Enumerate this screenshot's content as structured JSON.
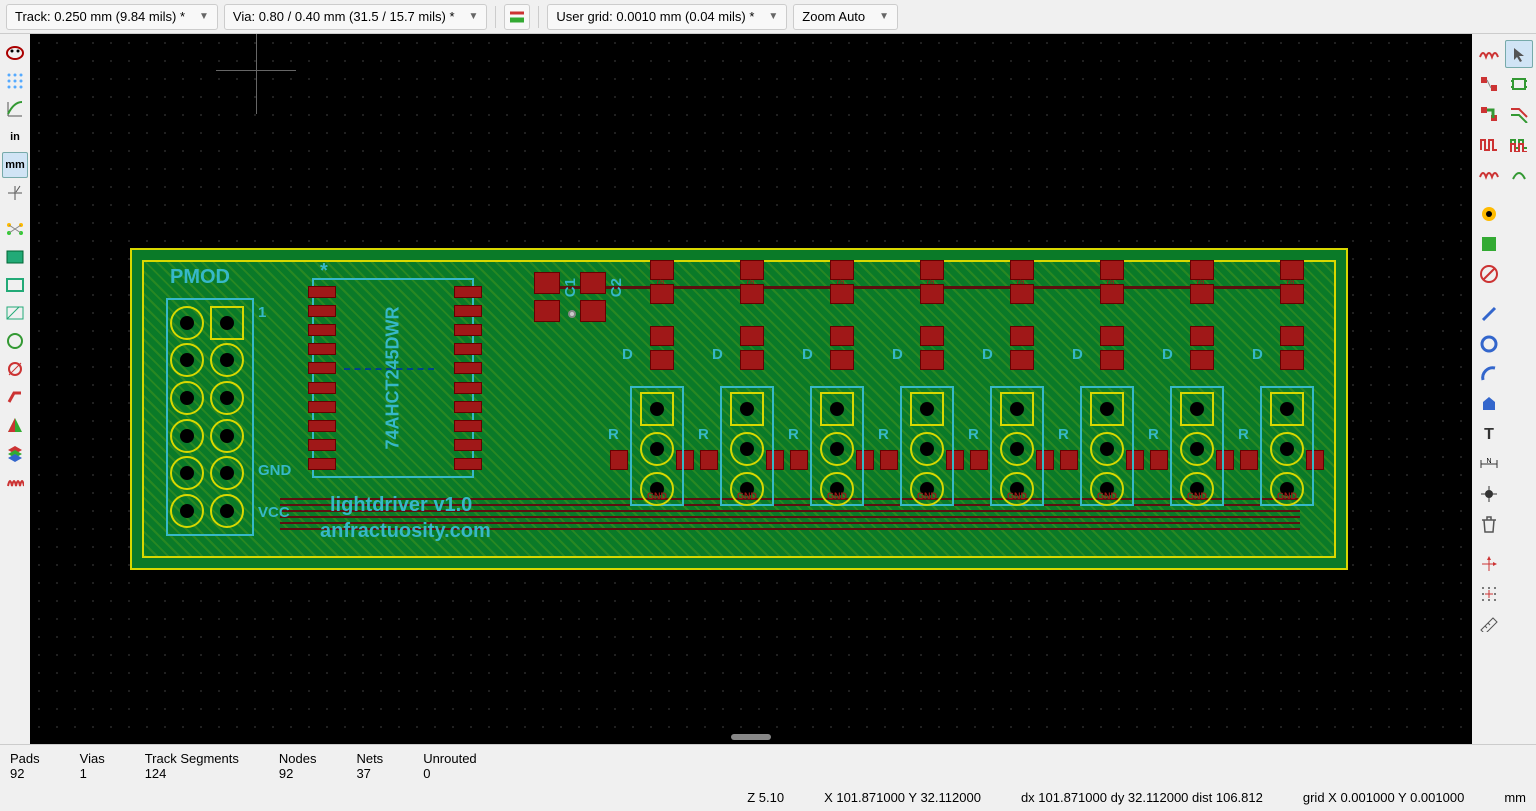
{
  "toolbar": {
    "track": "Track: 0.250 mm (9.84 mils) *",
    "via": "Via: 0.80 / 0.40 mm (31.5 / 15.7 mils) *",
    "grid": "User grid: 0.0010 mm (0.04 mils) *",
    "zoom": "Zoom Auto"
  },
  "left": {
    "units_in": "in",
    "units_mm": "mm"
  },
  "board": {
    "background_color": "#0a7a28",
    "outline_color": "#d8d800",
    "silk_color": "#36b8c8",
    "copper_color": "#a01818",
    "pmod_label": "PMOD",
    "pmod_pin1": "1",
    "pmod_gnd": "GND",
    "pmod_vcc": "VCC",
    "ic_star": "*",
    "ic_name": "74AHCT245DWR",
    "footer1": "lightdriver v1.0",
    "footer2": "anfractuosity.com",
    "cap1": "C1",
    "cap2": "C2",
    "group_count": 8,
    "d_label": "D",
    "r_label": "R"
  },
  "status": {
    "pads_l": "Pads",
    "pads_v": "92",
    "vias_l": "Vias",
    "vias_v": "1",
    "trk_l": "Track Segments",
    "trk_v": "124",
    "nodes_l": "Nodes",
    "nodes_v": "92",
    "nets_l": "Nets",
    "nets_v": "37",
    "unr_l": "Unrouted",
    "unr_v": "0",
    "z": "Z 5.10",
    "xy": "X 101.871000  Y 32.112000",
    "dxy": "dx 101.871000  dy 32.112000  dist 106.812",
    "gridxy": "grid X 0.001000  Y 0.001000",
    "units": "mm"
  }
}
